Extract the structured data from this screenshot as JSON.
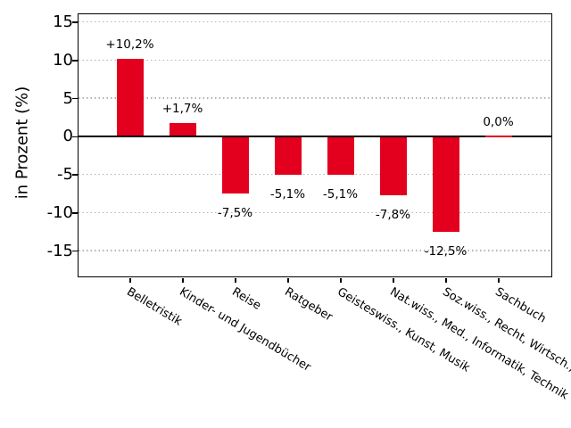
{
  "chart_data": {
    "type": "bar",
    "title": "",
    "xlabel": "",
    "ylabel": "in Prozent (%)",
    "categories": [
      "Belletristik",
      "Kinder- und Jugendbücher",
      "Reise",
      "Ratgeber",
      "Geisteswiss., Kunst, Musik",
      "Nat.wiss., Med., Informatik, Technik",
      "Soz.wiss., Recht, Wirtsch.,",
      "Sachbuch"
    ],
    "values": [
      10.2,
      1.7,
      -7.5,
      -5.1,
      -5.1,
      -7.8,
      -12.5,
      0.0
    ],
    "value_labels": [
      "+10,2%",
      "+1,7%",
      "-7,5%",
      "-5,1%",
      "-5,1%",
      "-7,8%",
      "-12,5%",
      "0,0%"
    ],
    "yticks": [
      15,
      10,
      5,
      0,
      -5,
      -10,
      -15
    ],
    "ylim": [
      -18.6,
      16.3
    ],
    "grid": "horizontal dotted gridlines at 5-unit steps, solid black line at 0",
    "legend_position": "none",
    "x_tick_label_rotation_deg": -31,
    "bar_color": "#e2001e",
    "grid_color": "#b3b3b3",
    "axis_color": "#000000",
    "text_color": "#000000",
    "background_color": "#ffffff"
  }
}
